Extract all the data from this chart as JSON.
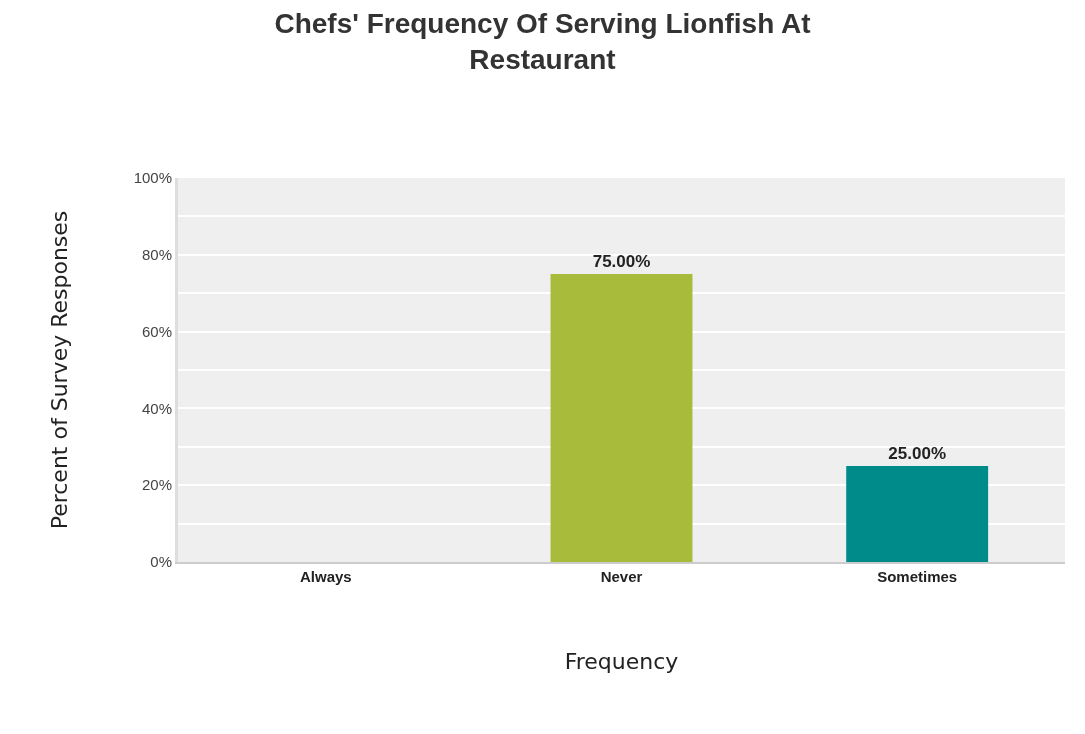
{
  "chart_data": {
    "type": "bar",
    "title": "Chefs' Frequency Of Serving Lionfish At\nRestaurant",
    "xlabel": "Frequency",
    "ylabel": "Percent of Survey Responses",
    "categories": [
      "Always",
      "Never",
      "Sometimes"
    ],
    "values": [
      0,
      75,
      25
    ],
    "colors": [
      "#a8bb3a",
      "#a8bb3a",
      "#008b8b"
    ],
    "value_labels": [
      null,
      "75.00%",
      "25.00%"
    ],
    "ylim": [
      0,
      100
    ],
    "yticks": [
      {
        "value": 0,
        "label": "0%"
      },
      {
        "value": 10,
        "label": null
      },
      {
        "value": 20,
        "label": "20%"
      },
      {
        "value": 30,
        "label": null
      },
      {
        "value": 40,
        "label": "40%"
      },
      {
        "value": 50,
        "label": null
      },
      {
        "value": 60,
        "label": "60%"
      },
      {
        "value": 70,
        "label": null
      },
      {
        "value": 80,
        "label": "80%"
      },
      {
        "value": 90,
        "label": null
      },
      {
        "value": 100,
        "label": "100%"
      }
    ],
    "grid": "y"
  }
}
